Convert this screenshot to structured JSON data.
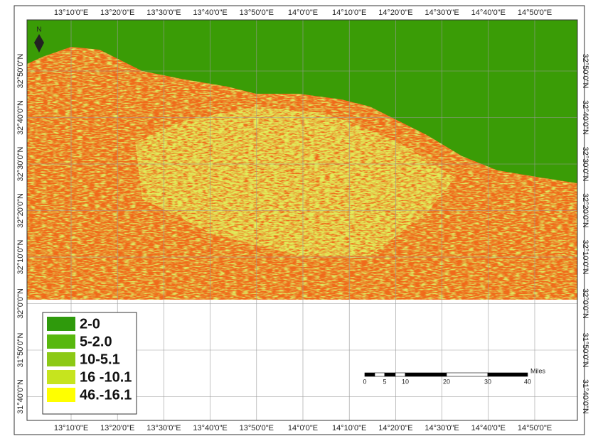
{
  "north_arrow": {
    "label": "N"
  },
  "grid": {
    "longitudes_top": [
      "13°10'0\"E",
      "13°20'0\"E",
      "13°30'0\"E",
      "13°40'0\"E",
      "13°50'0\"E",
      "14°0'0\"E",
      "14°10'0\"E",
      "14°20'0\"E",
      "14°30'0\"E",
      "14°40'0\"E",
      "14°50'0\"E"
    ],
    "longitudes_bottom": [
      "13°10'0\"E",
      "13°20'0\"E",
      "13°30'0\"E",
      "13°40'0\"E",
      "13°50'0\"E",
      "14°0'0\"E",
      "14°10'0\"E",
      "14°20'0\"E",
      "14°30'0\"E",
      "14°40'0\"E",
      "14°50'0\"E"
    ],
    "latitudes_left": [
      "32°50'0\"N",
      "32°40'0\"N",
      "32°30'0\"N",
      "32°20'0\"N",
      "32°10'0\"N",
      "32°0'0\"N",
      "31°50'0\"N",
      "31°40'0\"N"
    ],
    "latitudes_right": [
      "32°50'0\"N",
      "32°40'0\"N",
      "32°30'0\"N",
      "32°20'0\"N",
      "32°10'0\"N",
      "32°0'0\"N",
      "31°50'0\"N",
      "31°40'0\"N"
    ]
  },
  "legend": {
    "items": [
      {
        "label": "2-0",
        "color": "#2f9a0c"
      },
      {
        "label": "5-2.0",
        "color": "#58b80e"
      },
      {
        "label": "10-5.1",
        "color": "#8cc916"
      },
      {
        "label": "16 -10.1",
        "color": "#c6e41e"
      },
      {
        "label": "46.-16.1",
        "color": "#ffff00"
      }
    ]
  },
  "scale_bar": {
    "unit": "Miles",
    "labels": [
      "0",
      "5",
      "10",
      "20",
      "30",
      "40"
    ]
  }
}
